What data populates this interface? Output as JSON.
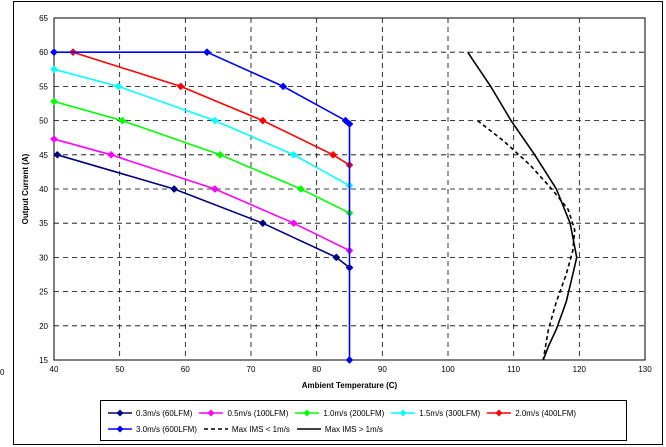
{
  "chart_data": {
    "type": "line",
    "title": "",
    "xlabel": "Ambient Temperature (C)",
    "ylabel": "Output Current (A)",
    "xlim": [
      40,
      130
    ],
    "ylim": [
      15,
      65
    ],
    "xticks": [
      "40",
      "50",
      "60",
      "70",
      "80",
      "90",
      "100",
      "110",
      "120",
      "130"
    ],
    "yticks": [
      "15",
      "20",
      "25",
      "30",
      "35",
      "40",
      "45",
      "50",
      "55",
      "60",
      "65"
    ],
    "grid": true,
    "legend_position": "bottom",
    "edge_label": "0",
    "series": [
      {
        "name": "0.3m/s (60LFM)",
        "color": "#000080",
        "style": "solid",
        "marker": "diamond",
        "x": [
          40.5,
          58.3,
          71.8,
          83.0,
          85.0
        ],
        "y": [
          45,
          40,
          35,
          30,
          28.5
        ]
      },
      {
        "name": "0.5m/s (100LFM)",
        "color": "#ff00ff",
        "style": "solid",
        "marker": "diamond",
        "x": [
          40,
          48.7,
          64.5,
          76.5,
          85.0
        ],
        "y": [
          47.3,
          45,
          40,
          35,
          31
        ]
      },
      {
        "name": "1.0m/s (200LFM)",
        "color": "#00ff00",
        "style": "solid",
        "marker": "diamond",
        "x": [
          40,
          50.4,
          65.3,
          77.6,
          85.0
        ],
        "y": [
          52.8,
          50,
          45,
          40,
          36.5
        ]
      },
      {
        "name": "1.5m/s (300LFM)",
        "color": "#00ffff",
        "style": "solid",
        "marker": "diamond",
        "x": [
          40,
          49.8,
          64.5,
          76.5,
          85.0
        ],
        "y": [
          57.5,
          55,
          50,
          45,
          40.5
        ]
      },
      {
        "name": "2.0m/s (400LFM)",
        "color": "#ff0000",
        "style": "solid",
        "marker": "diamond",
        "x": [
          42.9,
          59.3,
          71.8,
          82.5,
          85.0
        ],
        "y": [
          60,
          55,
          50,
          45,
          43.5
        ]
      },
      {
        "name": "3.0m/s (600LFM)",
        "color": "#0000ff",
        "style": "solid",
        "marker": "diamond",
        "x": [
          40,
          63.3,
          74.9,
          84.4,
          85.0,
          85.0
        ],
        "y": [
          60,
          60,
          55,
          50,
          49.5,
          15
        ]
      },
      {
        "name": "Max IMS < 1m/s",
        "color": "#000000",
        "style": "dashed",
        "marker": "none",
        "x": [
          104.5,
          108.5,
          112.5,
          115.8,
          118.3,
          119.3,
          119.0,
          118.0,
          116.5,
          115.3,
          114.5
        ],
        "y": [
          50,
          47,
          43.5,
          40,
          37,
          34,
          31,
          27.5,
          23.5,
          19.5,
          15
        ]
      },
      {
        "name": "Max IMS > 1m/s",
        "color": "#000000",
        "style": "solid",
        "marker": "none",
        "x": [
          103.0,
          106.5,
          109.6,
          113.2,
          116.5,
          118.6,
          119.6,
          119.0,
          118.0,
          116.5,
          115.3,
          114.5
        ],
        "y": [
          60,
          55,
          50,
          45,
          40,
          35,
          30,
          27.5,
          23.5,
          19.5,
          17,
          15
        ]
      }
    ]
  }
}
